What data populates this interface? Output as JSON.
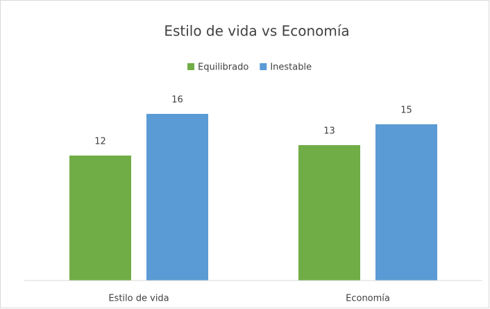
{
  "chart_data": {
    "type": "bar",
    "title": "Estilo de vida vs Economía",
    "categories": [
      "Estilo de vida",
      "Economía"
    ],
    "series": [
      {
        "name": "Equilibrado",
        "color": "#70ad47",
        "values": [
          12,
          13
        ]
      },
      {
        "name": "Inestable",
        "color": "#5b9bd5",
        "values": [
          16,
          15
        ]
      }
    ],
    "ylim": [
      0,
      18
    ],
    "legend": "top"
  }
}
